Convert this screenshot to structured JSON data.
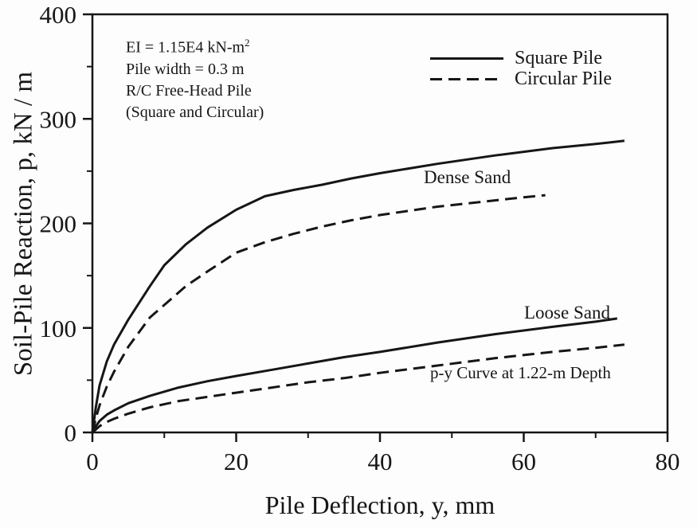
{
  "figure": {
    "background": "#fdfdfd",
    "ink_color": "#161616"
  },
  "chart_data": {
    "type": "line",
    "title": "",
    "xlabel": "Pile Deflection, y, mm",
    "ylabel": "Soil-Pile Reaction, p, kN / m",
    "xlim": [
      0,
      80
    ],
    "ylim": [
      0,
      400
    ],
    "grid": false,
    "legend_position": "top-right",
    "x_ticks": {
      "major": [
        0,
        20,
        40,
        60,
        80
      ],
      "minor": [
        10,
        30,
        50,
        70
      ]
    },
    "y_ticks": {
      "major": [
        0,
        100,
        200,
        300,
        400
      ],
      "minor": [
        50,
        150,
        250,
        350
      ]
    },
    "series": [
      {
        "name": "Dense Sand Square Pile",
        "soil": "Dense Sand",
        "pile": "Square Pile",
        "style": "solid",
        "points": [
          [
            0,
            0
          ],
          [
            0.5,
            25
          ],
          [
            1,
            45
          ],
          [
            2,
            68
          ],
          [
            3,
            84
          ],
          [
            5,
            108
          ],
          [
            8,
            140
          ],
          [
            10,
            160
          ],
          [
            13,
            180
          ],
          [
            16,
            196
          ],
          [
            20,
            213
          ],
          [
            24,
            226
          ],
          [
            28,
            232
          ],
          [
            32,
            237
          ],
          [
            36,
            243
          ],
          [
            40,
            248
          ],
          [
            48,
            257
          ],
          [
            56,
            265
          ],
          [
            64,
            272
          ],
          [
            70,
            276
          ],
          [
            74,
            279
          ]
        ]
      },
      {
        "name": "Dense Sand Circular Pile",
        "soil": "Dense Sand",
        "pile": "Circular Pile",
        "style": "dashed",
        "points": [
          [
            0,
            0
          ],
          [
            0.5,
            14
          ],
          [
            1,
            26
          ],
          [
            2,
            44
          ],
          [
            3,
            58
          ],
          [
            5,
            82
          ],
          [
            8,
            110
          ],
          [
            10,
            122
          ],
          [
            13,
            140
          ],
          [
            16,
            154
          ],
          [
            20,
            172
          ],
          [
            24,
            182
          ],
          [
            28,
            190
          ],
          [
            32,
            197
          ],
          [
            36,
            203
          ],
          [
            40,
            208
          ],
          [
            48,
            216
          ],
          [
            56,
            222
          ],
          [
            60,
            225
          ],
          [
            63,
            227
          ]
        ]
      },
      {
        "name": "Loose Sand Square Pile",
        "soil": "Loose Sand",
        "pile": "Square Pile",
        "style": "solid",
        "points": [
          [
            0,
            0
          ],
          [
            0.5,
            6
          ],
          [
            1,
            11
          ],
          [
            2,
            17
          ],
          [
            3,
            21
          ],
          [
            5,
            28
          ],
          [
            8,
            35
          ],
          [
            12,
            43
          ],
          [
            16,
            49
          ],
          [
            20,
            54
          ],
          [
            25,
            60
          ],
          [
            30,
            66
          ],
          [
            35,
            72
          ],
          [
            40,
            77
          ],
          [
            48,
            86
          ],
          [
            56,
            94
          ],
          [
            64,
            101
          ],
          [
            70,
            106
          ],
          [
            73,
            109
          ]
        ]
      },
      {
        "name": "Loose Sand Circular Pile",
        "soil": "Loose Sand",
        "pile": "Circular Pile",
        "style": "dashed",
        "points": [
          [
            0,
            0
          ],
          [
            0.5,
            3
          ],
          [
            1,
            6
          ],
          [
            2,
            10
          ],
          [
            3,
            13
          ],
          [
            5,
            18
          ],
          [
            8,
            24
          ],
          [
            12,
            30
          ],
          [
            16,
            34
          ],
          [
            20,
            38
          ],
          [
            25,
            43
          ],
          [
            30,
            48
          ],
          [
            35,
            52
          ],
          [
            40,
            57
          ],
          [
            48,
            64
          ],
          [
            56,
            71
          ],
          [
            64,
            77
          ],
          [
            70,
            81
          ],
          [
            74,
            84
          ]
        ]
      }
    ]
  },
  "legend": {
    "items": [
      {
        "label": "Square Pile",
        "style": "solid"
      },
      {
        "label": "Circular Pile",
        "style": "dashed"
      }
    ]
  },
  "annotations": {
    "note_line_1_main": "EI = 1.15E4 kN-m",
    "note_line_1_sup": "2",
    "note_line_2": "Pile width = 0.3 m",
    "note_line_3": "R/C Free-Head Pile",
    "note_line_4": "(Square and Circular)",
    "dense_label": "Dense Sand",
    "loose_label": "Loose Sand",
    "depth_note": "p-y Curve at 1.22-m Depth"
  }
}
